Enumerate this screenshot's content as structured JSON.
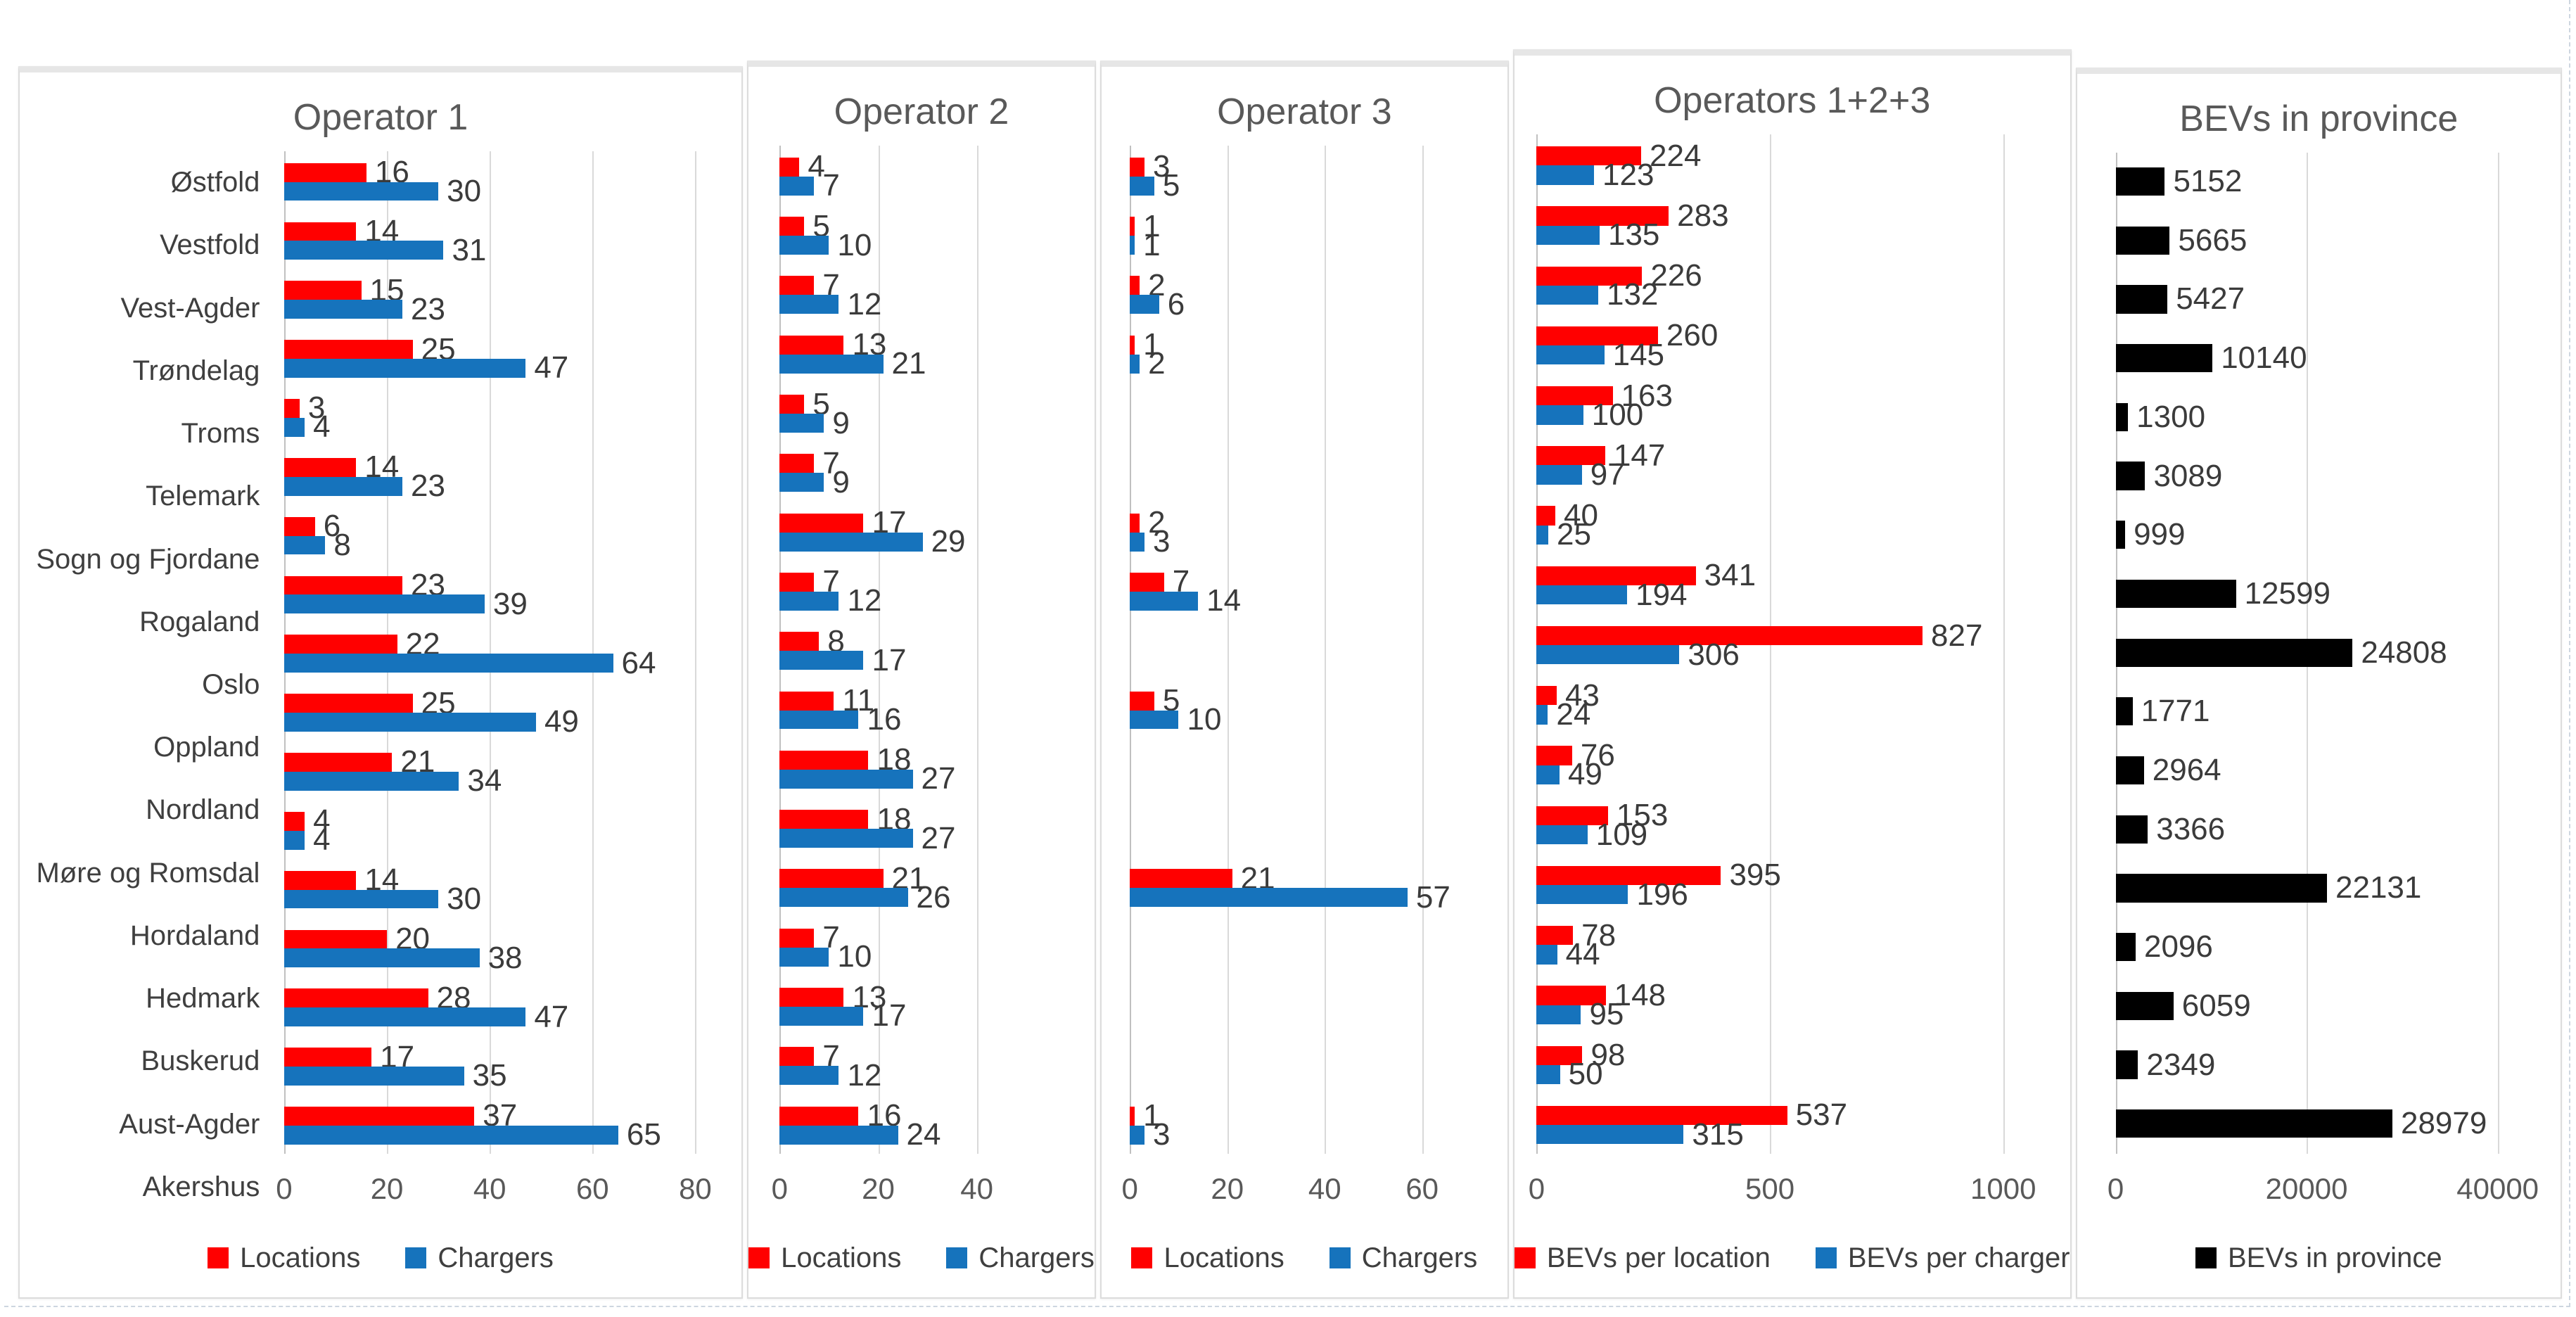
{
  "chart_data": [
    {
      "type": "bar",
      "orientation": "horizontal",
      "title": "Operator 1",
      "categories": [
        "Østfold",
        "Vestfold",
        "Vest-Agder",
        "Trøndelag",
        "Troms",
        "Telemark",
        "Sogn og Fjordane",
        "Rogaland",
        "Oslo",
        "Oppland",
        "Nordland",
        "Møre og Romsdal",
        "Hordaland",
        "Hedmark",
        "Buskerud",
        "Aust-Agder",
        "Akershus"
      ],
      "series": [
        {
          "name": "Locations",
          "color": "#ff0000",
          "values": [
            16,
            14,
            15,
            25,
            3,
            14,
            6,
            23,
            22,
            25,
            21,
            4,
            14,
            20,
            28,
            17,
            37
          ]
        },
        {
          "name": "Chargers",
          "color": "#1673bc",
          "values": [
            30,
            31,
            23,
            47,
            4,
            23,
            8,
            39,
            64,
            49,
            34,
            4,
            30,
            38,
            47,
            35,
            65
          ]
        }
      ],
      "xlim": [
        0,
        80
      ],
      "ticks": [
        0,
        20,
        40,
        60,
        80
      ],
      "grid": true,
      "value_labels": true,
      "legend_position": "bottom"
    },
    {
      "type": "bar",
      "orientation": "horizontal",
      "title": "Operator 2",
      "categories": [
        "Østfold",
        "Vestfold",
        "Vest-Agder",
        "Trøndelag",
        "Troms",
        "Telemark",
        "Sogn og Fjordane",
        "Rogaland",
        "Oslo",
        "Oppland",
        "Nordland",
        "Møre og Romsdal",
        "Hordaland",
        "Hedmark",
        "Buskerud",
        "Aust-Agder",
        "Akershus"
      ],
      "series": [
        {
          "name": "Locations",
          "color": "#ff0000",
          "values": [
            4,
            5,
            7,
            13,
            5,
            7,
            17,
            7,
            8,
            11,
            18,
            18,
            21,
            7,
            13,
            7,
            16
          ]
        },
        {
          "name": "Chargers",
          "color": "#1673bc",
          "values": [
            7,
            10,
            12,
            21,
            9,
            9,
            29,
            12,
            17,
            16,
            27,
            27,
            26,
            10,
            17,
            12,
            24
          ]
        }
      ],
      "xlim": [
        0,
        40
      ],
      "ticks": [
        0,
        20,
        40
      ],
      "grid": true,
      "value_labels": true,
      "legend_position": "bottom"
    },
    {
      "type": "bar",
      "orientation": "horizontal",
      "title": "Operator 3",
      "categories": [
        "Østfold",
        "Vestfold",
        "Vest-Agder",
        "Trøndelag",
        "Troms",
        "Telemark",
        "Sogn og Fjordane",
        "Rogaland",
        "Oslo",
        "Oppland",
        "Nordland",
        "Møre og Romsdal",
        "Hordaland",
        "Hedmark",
        "Buskerud",
        "Aust-Agder",
        "Akershus"
      ],
      "series": [
        {
          "name": "Locations",
          "color": "#ff0000",
          "values": [
            3,
            1,
            2,
            1,
            null,
            null,
            2,
            7,
            null,
            5,
            null,
            null,
            21,
            null,
            null,
            null,
            1
          ]
        },
        {
          "name": "Chargers",
          "color": "#1673bc",
          "values": [
            5,
            1,
            6,
            2,
            null,
            null,
            3,
            14,
            null,
            10,
            null,
            null,
            57,
            null,
            null,
            null,
            3
          ]
        }
      ],
      "xlim": [
        0,
        60
      ],
      "ticks": [
        0,
        20,
        40,
        60
      ],
      "grid": true,
      "value_labels": true,
      "legend_position": "bottom"
    },
    {
      "type": "bar",
      "orientation": "horizontal",
      "title": "Operators 1+2+3",
      "categories": [
        "Østfold",
        "Vestfold",
        "Vest-Agder",
        "Trøndelag",
        "Troms",
        "Telemark",
        "Sogn og Fjordane",
        "Rogaland",
        "Oslo",
        "Oppland",
        "Nordland",
        "Møre og Romsdal",
        "Hordaland",
        "Hedmark",
        "Buskerud",
        "Aust-Agder",
        "Akershus"
      ],
      "series": [
        {
          "name": "BEVs per location",
          "color": "#ff0000",
          "values": [
            224,
            283,
            226,
            260,
            163,
            147,
            40,
            341,
            827,
            43,
            76,
            153,
            395,
            78,
            148,
            98,
            537
          ]
        },
        {
          "name": "BEVs per charger",
          "color": "#1673bc",
          "values": [
            123,
            135,
            132,
            145,
            100,
            97,
            25,
            194,
            306,
            24,
            49,
            109,
            196,
            44,
            95,
            50,
            315
          ]
        }
      ],
      "xlim": [
        0,
        1000
      ],
      "ticks": [
        0,
        500,
        1000
      ],
      "grid": true,
      "value_labels": true,
      "legend_position": "bottom"
    },
    {
      "type": "bar",
      "orientation": "horizontal",
      "title": "BEVs in province",
      "categories": [
        "Østfold",
        "Vestfold",
        "Vest-Agder",
        "Trøndelag",
        "Troms",
        "Telemark",
        "Sogn og Fjordane",
        "Rogaland",
        "Oslo",
        "Oppland",
        "Nordland",
        "Møre og Romsdal",
        "Hordaland",
        "Hedmark",
        "Buskerud",
        "Aust-Agder",
        "Akershus"
      ],
      "series": [
        {
          "name": "BEVs in province",
          "color": "#000000",
          "values": [
            5152,
            5665,
            5427,
            10140,
            1300,
            3089,
            999,
            12599,
            24808,
            1771,
            2964,
            3366,
            22131,
            2096,
            6059,
            2349,
            28979
          ]
        }
      ],
      "xlim": [
        0,
        40000
      ],
      "ticks": [
        0,
        20000,
        40000
      ],
      "grid": true,
      "value_labels": true,
      "legend_position": "bottom"
    }
  ]
}
